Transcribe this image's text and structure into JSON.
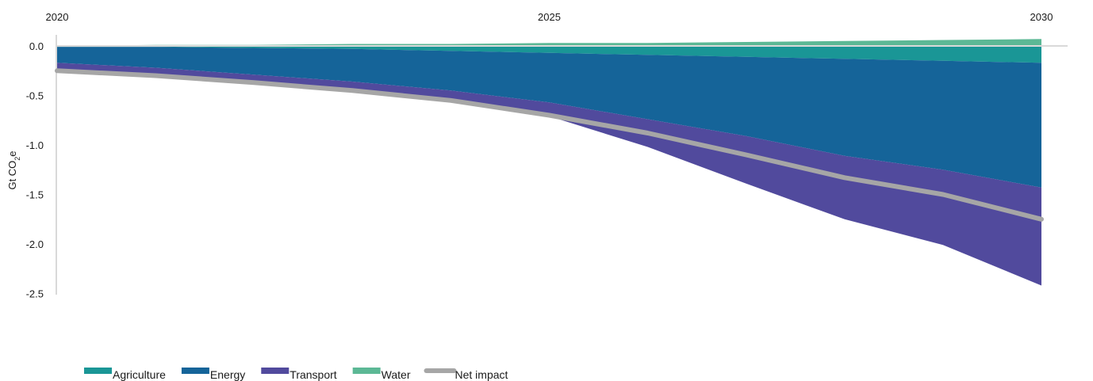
{
  "chart_data": {
    "type": "area",
    "ylabel": {
      "main": "Gt CO",
      "sub": "2",
      "tail": "e"
    },
    "x": [
      2020,
      2021,
      2022,
      2023,
      2024,
      2025,
      2026,
      2027,
      2028,
      2029,
      2030
    ],
    "xticks": [
      "2020",
      "2025",
      "2030"
    ],
    "ylim": [
      -2.5,
      0.1
    ],
    "yticks": [
      0.0,
      -0.5,
      -1.0,
      -1.5,
      -2.0,
      -2.5
    ],
    "ytick_labels": [
      "0.0",
      "-0.5",
      "-1.0",
      "-1.5",
      "-2.0",
      "-2.5"
    ],
    "grid": false,
    "legend_position": "bottom-left",
    "series": [
      {
        "name": "Agriculture",
        "color": "#1a9696",
        "values": [
          -0.01,
          -0.01,
          -0.02,
          -0.03,
          -0.05,
          -0.07,
          -0.09,
          -0.11,
          -0.13,
          -0.15,
          -0.17
        ]
      },
      {
        "name": "Energy",
        "color": "#156499",
        "values": [
          -0.16,
          -0.21,
          -0.27,
          -0.33,
          -0.4,
          -0.5,
          -0.65,
          -0.8,
          -0.98,
          -1.1,
          -1.26
        ]
      },
      {
        "name": "Transport",
        "color": "#514a9d",
        "values": [
          -0.06,
          -0.07,
          -0.07,
          -0.1,
          -0.11,
          -0.14,
          -0.28,
          -0.48,
          -0.64,
          -0.76,
          -0.99
        ]
      },
      {
        "name": "Water",
        "color": "#5cb895",
        "values": [
          0.0,
          0.01,
          0.01,
          0.02,
          0.02,
          0.03,
          0.03,
          0.04,
          0.05,
          0.06,
          0.07
        ]
      }
    ],
    "net_impact": {
      "name": "Net impact",
      "color": "#a6a6a6",
      "values": [
        -0.25,
        -0.3,
        -0.37,
        -0.45,
        -0.55,
        -0.7,
        -0.88,
        -1.1,
        -1.33,
        -1.5,
        -1.75
      ]
    }
  }
}
